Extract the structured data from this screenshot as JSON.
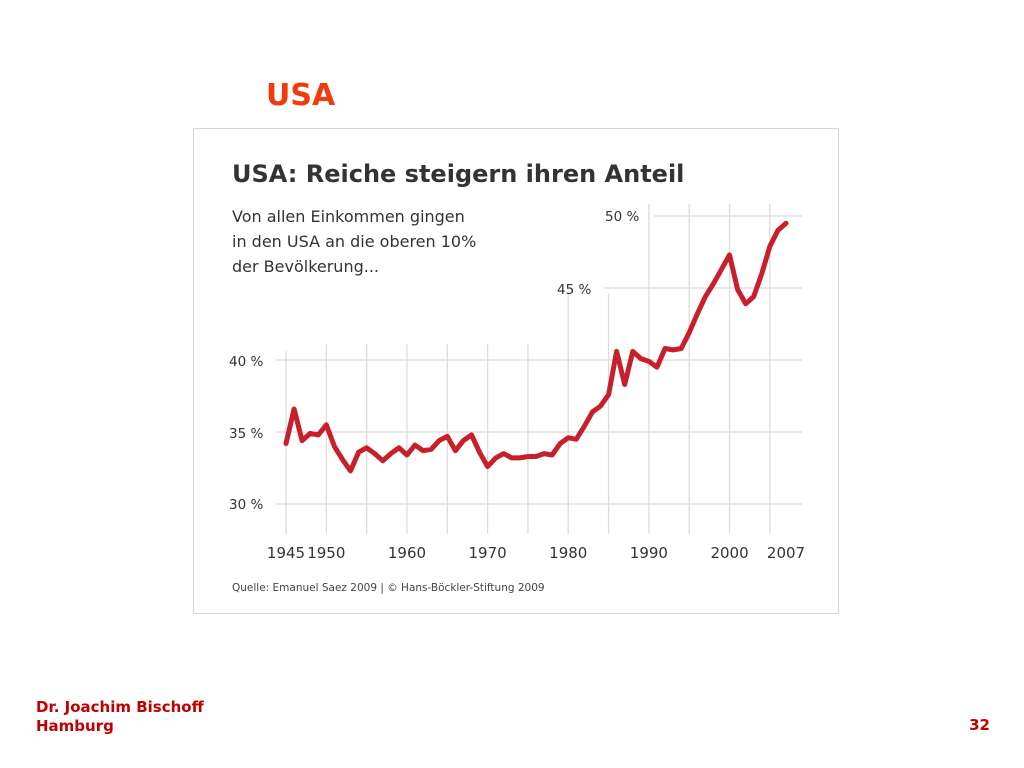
{
  "slide": {
    "title": "USA",
    "author": "Dr. Joachim Bischoff",
    "city": "Hamburg",
    "page_number": "32"
  },
  "colors": {
    "title": "#f03c0c",
    "footer": "#c00000",
    "series_line": "#c8202a",
    "grid": "#dcdcdc"
  },
  "chart_data": {
    "type": "line",
    "title": "USA: Reiche steigern ihren Anteil",
    "subtitle": [
      "Von allen Einkommen gingen",
      "in den USA an die oberen 10%",
      "der Bevölkerung..."
    ],
    "source": "Quelle: Emanuel Saez 2009 | © Hans-Böckler-Stiftung 2009",
    "xlabel": "",
    "ylabel": "",
    "xlim": [
      1945,
      2007
    ],
    "ylim": [
      30,
      50
    ],
    "x_ticks": [
      1945,
      1950,
      1960,
      1970,
      1980,
      1990,
      2000,
      2007
    ],
    "y_ticks": [
      {
        "value": 30,
        "label": "30 %"
      },
      {
        "value": 35,
        "label": "35 %"
      },
      {
        "value": 40,
        "label": "40 %"
      },
      {
        "value": 45,
        "label": "45 %"
      },
      {
        "value": 50,
        "label": "50 %"
      }
    ],
    "grid": true,
    "series": [
      {
        "x": [
          1945,
          1946,
          1947,
          1948,
          1949,
          1950,
          1951,
          1952,
          1953,
          1954,
          1955,
          1956,
          1957,
          1958,
          1959,
          1960,
          1961,
          1962,
          1963,
          1964,
          1965,
          1966,
          1967,
          1968,
          1969,
          1970,
          1971,
          1972,
          1973,
          1974,
          1975,
          1976,
          1977,
          1978,
          1979,
          1980,
          1981,
          1982,
          1983,
          1984,
          1985,
          1986,
          1987,
          1988,
          1989,
          1990,
          1991,
          1992,
          1993,
          1994,
          1995,
          1996,
          1997,
          1998,
          1999,
          2000,
          2001,
          2002,
          2003,
          2004,
          2005,
          2006,
          2007
        ],
        "values": [
          34.2,
          36.6,
          34.4,
          34.9,
          34.8,
          35.5,
          34.0,
          33.1,
          32.3,
          33.6,
          33.9,
          33.5,
          33.0,
          33.5,
          33.9,
          33.4,
          34.1,
          33.7,
          33.8,
          34.4,
          34.7,
          33.7,
          34.4,
          34.8,
          33.6,
          32.6,
          33.2,
          33.5,
          33.2,
          33.2,
          33.3,
          33.3,
          33.5,
          33.4,
          34.2,
          34.6,
          34.5,
          35.4,
          36.4,
          36.8,
          37.6,
          40.6,
          38.3,
          40.6,
          40.1,
          39.9,
          39.5,
          40.8,
          40.7,
          40.8,
          41.9,
          43.2,
          44.4,
          45.3,
          46.3,
          47.3,
          44.9,
          43.9,
          44.4,
          46.0,
          47.9,
          49.0,
          49.5
        ]
      }
    ]
  }
}
